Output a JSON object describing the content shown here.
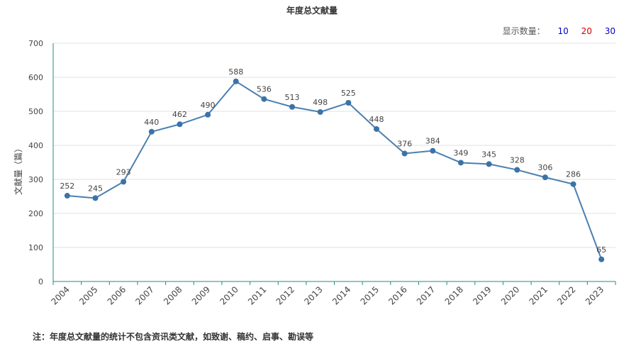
{
  "title": "年度总文献量",
  "count_selector": {
    "label": "显示数量：",
    "options": [
      {
        "label": "10",
        "color": "#0000cc"
      },
      {
        "label": "20",
        "color": "#cc0000"
      },
      {
        "label": "30",
        "color": "#0000cc"
      }
    ]
  },
  "note": "注：年度总文献量的统计不包含资讯类文献，如致谢、稿约、启事、勘误等",
  "colors": {
    "line": "#4a7fb0",
    "point": "#3b73a8",
    "axis": "#1f8f7f",
    "grid": "#e0e0e0"
  },
  "chart_data": {
    "type": "line",
    "title": "年度总文献量",
    "xlabel": "",
    "ylabel": "文献量（篇）",
    "ylim": [
      0,
      700
    ],
    "yticks": [
      0,
      100,
      200,
      300,
      400,
      500,
      600,
      700
    ],
    "grid": true,
    "categories": [
      "2004",
      "2005",
      "2006",
      "2007",
      "2008",
      "2009",
      "2010",
      "2011",
      "2012",
      "2013",
      "2014",
      "2015",
      "2016",
      "2017",
      "2018",
      "2019",
      "2020",
      "2021",
      "2022",
      "2023"
    ],
    "values": [
      252,
      245,
      293,
      440,
      462,
      490,
      588,
      536,
      513,
      498,
      525,
      448,
      376,
      384,
      349,
      345,
      328,
      306,
      286,
      65
    ]
  }
}
